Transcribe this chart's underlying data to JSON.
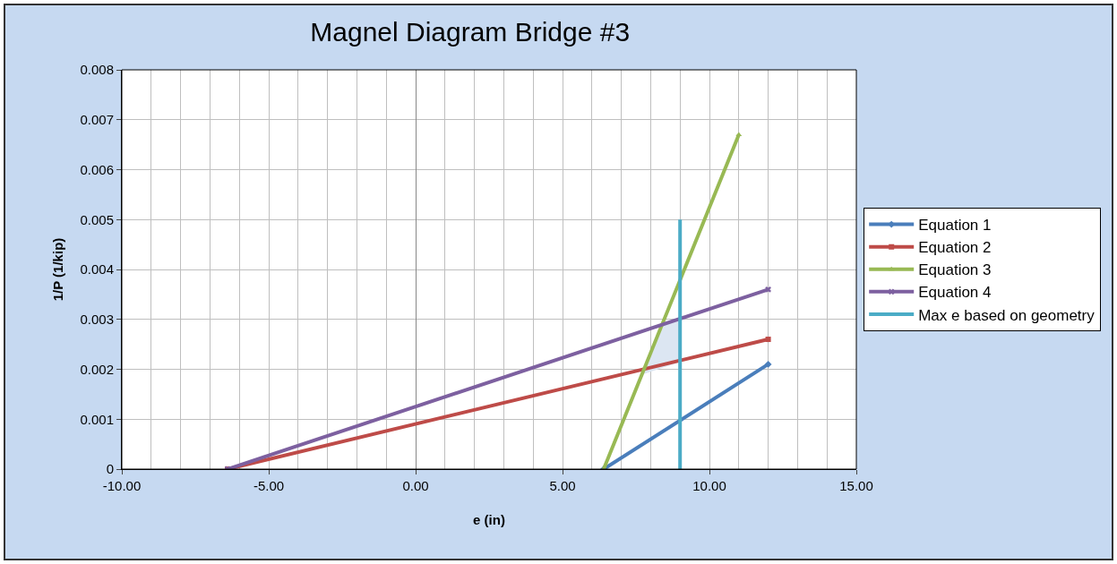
{
  "chart_data": {
    "type": "line",
    "title": "Magnel Diagram Bridge #3",
    "xlabel": "e (in)",
    "ylabel": "1/P (1/kip)",
    "series": [
      {
        "name": "Equation 1",
        "color": "#4a7ebb",
        "marker": "diamond",
        "x": [
          6.4,
          12
        ],
        "values": [
          0,
          0.0021
        ]
      },
      {
        "name": "Equation 2",
        "color": "#be4b48",
        "marker": "square",
        "x": [
          -6.4,
          12
        ],
        "values": [
          0,
          0.0026
        ]
      },
      {
        "name": "Equation 3",
        "color": "#98b954",
        "marker": "triangle",
        "x": [
          6.4,
          11
        ],
        "values": [
          0,
          0.0067
        ]
      },
      {
        "name": "Equation 4",
        "color": "#7d60a0",
        "marker": "cross",
        "x": [
          -6.4,
          12
        ],
        "values": [
          0,
          0.0036
        ]
      },
      {
        "name": "Max e based on geometry",
        "color": "#4bacc6",
        "marker": "none",
        "x": [
          9,
          9
        ],
        "values": [
          0,
          0.005
        ]
      },
      {
        "type": "area",
        "color": "#dce6f2",
        "x": [
          7.75,
          8.45,
          9,
          9
        ],
        "values": [
          0.0019,
          0.0029,
          0.003,
          0.00215
        ]
      }
    ],
    "xlim": [
      -10,
      15
    ],
    "xticks": [
      {
        "value": -10,
        "label": "-10.00"
      },
      {
        "value": -5,
        "label": "-5.00"
      },
      {
        "value": 0,
        "label": "0.00"
      },
      {
        "value": 5,
        "label": "5.00"
      },
      {
        "value": 10,
        "label": "10.00"
      },
      {
        "value": 15,
        "label": "15.00"
      }
    ],
    "ylim": [
      0,
      0.008
    ],
    "yticks": [
      0,
      0.001,
      0.002,
      0.003,
      0.004,
      0.005,
      0.006,
      0.007,
      0.008
    ],
    "grid": true,
    "legend": "right"
  }
}
